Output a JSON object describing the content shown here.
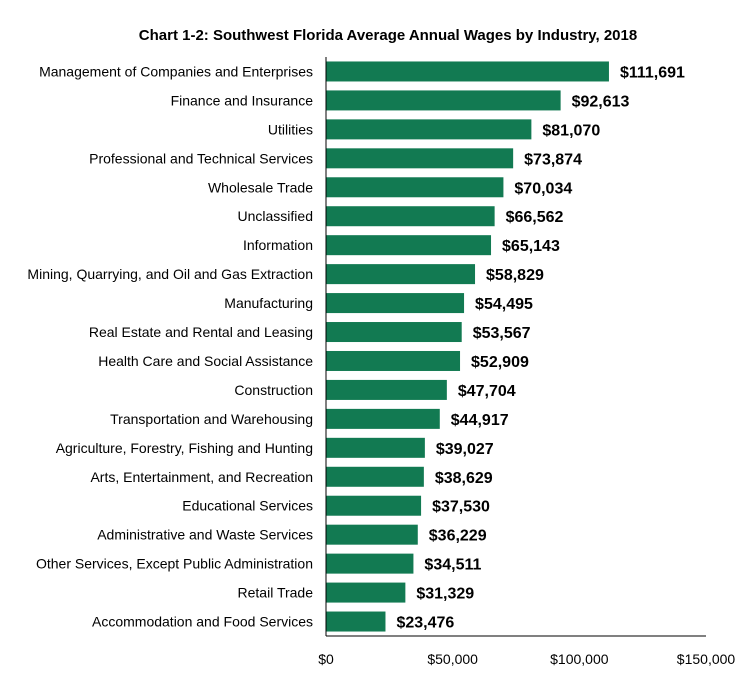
{
  "chart_data": {
    "type": "bar",
    "orientation": "horizontal",
    "title": "Chart 1-2: Southwest Florida Average Annual Wages by Industry, 2018",
    "xlabel": "",
    "ylabel": "",
    "xlim": [
      0,
      150000
    ],
    "x_ticks": [
      0,
      50000,
      100000,
      150000
    ],
    "x_tick_labels": [
      "$0",
      "$50,000",
      "$100,000",
      "$150,000"
    ],
    "grid": false,
    "bar_color": "#127a52",
    "categories": [
      "Management of Companies and Enterprises",
      "Finance and Insurance",
      "Utilities",
      "Professional and Technical Services",
      "Wholesale Trade",
      "Unclassified",
      "Information",
      "Mining, Quarrying, and Oil and Gas Extraction",
      "Manufacturing",
      "Real Estate and Rental and Leasing",
      "Health Care and Social Assistance",
      "Construction",
      "Transportation and Warehousing",
      "Agriculture, Forestry, Fishing and Hunting",
      "Arts, Entertainment, and Recreation",
      "Educational Services",
      "Administrative and Waste Services",
      "Other Services, Except Public Administration",
      "Retail Trade",
      "Accommodation and Food Services"
    ],
    "values": [
      111691,
      92613,
      81070,
      73874,
      70034,
      66562,
      65143,
      58829,
      54495,
      53567,
      52909,
      47704,
      44917,
      39027,
      38629,
      37530,
      36229,
      34511,
      31329,
      23476
    ],
    "value_labels": [
      "$111,691",
      "$92,613",
      "$81,070",
      "$73,874",
      "$70,034",
      "$66,562",
      "$65,143",
      "$58,829",
      "$54,495",
      "$53,567",
      "$52,909",
      "$47,704",
      "$44,917",
      "$39,027",
      "$38,629",
      "$37,530",
      "$36,229",
      "$34,511",
      "$31,329",
      "$23,476"
    ]
  }
}
